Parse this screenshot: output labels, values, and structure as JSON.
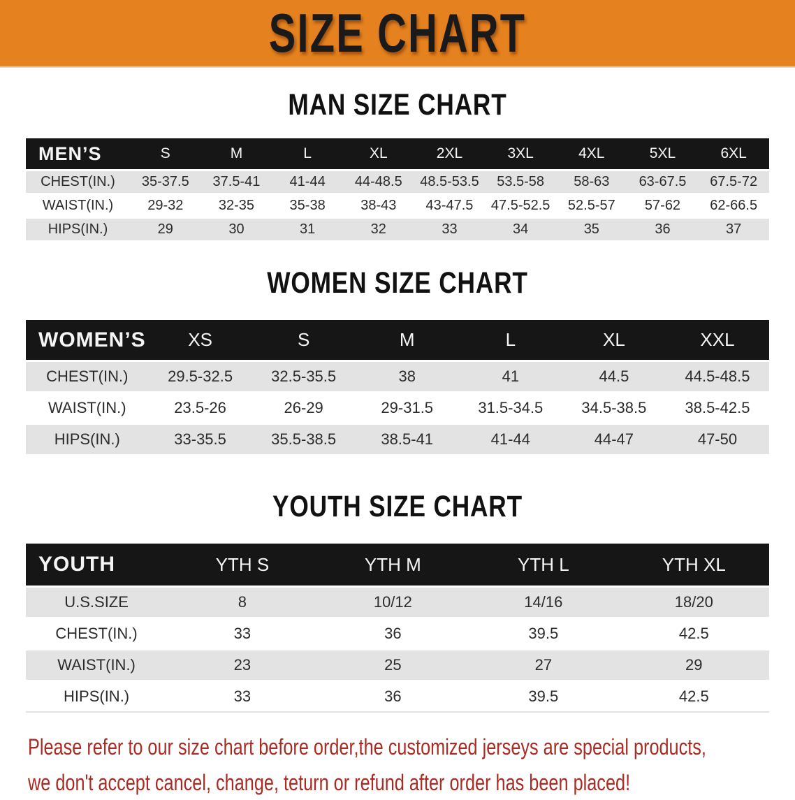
{
  "banner": {
    "title": "SIZE CHART"
  },
  "colors": {
    "banner_bg": "#e5821f",
    "banner_text": "#1a1a1a",
    "header_bar": "#161616",
    "row_gray": "#e3e3e3",
    "notice_red": "#a82c24"
  },
  "sections": [
    {
      "title": "MAN SIZE CHART",
      "corner_label": "MEN’S",
      "columns": [
        "S",
        "M",
        "L",
        "XL",
        "2XL",
        "3XL",
        "4XL",
        "5XL",
        "6XL"
      ],
      "rows": [
        {
          "label": "CHEST(IN.)",
          "values": [
            "35-37.5",
            "37.5-41",
            "41-44",
            "44-48.5",
            "48.5-53.5",
            "53.5-58",
            "58-63",
            "63-67.5",
            "67.5-72"
          ]
        },
        {
          "label": "WAIST(IN.)",
          "values": [
            "29-32",
            "32-35",
            "35-38",
            "38-43",
            "43-47.5",
            "47.5-52.5",
            "52.5-57",
            "57-62",
            "62-66.5"
          ]
        },
        {
          "label": "HIPS(IN.)",
          "values": [
            "29",
            "30",
            "31",
            "32",
            "33",
            "34",
            "35",
            "36",
            "37"
          ]
        }
      ]
    },
    {
      "title": "WOMEN SIZE CHART",
      "corner_label": "WOMEN’S",
      "columns": [
        "XS",
        "S",
        "M",
        "L",
        "XL",
        "XXL"
      ],
      "rows": [
        {
          "label": "CHEST(IN.)",
          "values": [
            "29.5-32.5",
            "32.5-35.5",
            "38",
            "41",
            "44.5",
            "44.5-48.5"
          ]
        },
        {
          "label": "WAIST(IN.)",
          "values": [
            "23.5-26",
            "26-29",
            "29-31.5",
            "31.5-34.5",
            "34.5-38.5",
            "38.5-42.5"
          ]
        },
        {
          "label": "HIPS(IN.)",
          "values": [
            "33-35.5",
            "35.5-38.5",
            "38.5-41",
            "41-44",
            "44-47",
            "47-50"
          ]
        }
      ]
    },
    {
      "title": "YOUTH SIZE CHART",
      "corner_label": "YOUTH",
      "columns": [
        "YTH S",
        "YTH M",
        "YTH L",
        "YTH XL"
      ],
      "rows": [
        {
          "label": "U.S.SIZE",
          "values": [
            "8",
            "10/12",
            "14/16",
            "18/20"
          ]
        },
        {
          "label": "CHEST(IN.)",
          "values": [
            "33",
            "36",
            "39.5",
            "42.5"
          ]
        },
        {
          "label": "WAIST(IN.)",
          "values": [
            "23",
            "25",
            "27",
            "29"
          ]
        },
        {
          "label": "HIPS(IN.)",
          "values": [
            "33",
            "36",
            "39.5",
            "42.5"
          ]
        }
      ]
    }
  ],
  "footer": {
    "line1": "Please refer to our size chart before order,the customized jerseys are special products,",
    "line2": "we don't accept cancel, change, teturn or refund after order has been placed!"
  }
}
